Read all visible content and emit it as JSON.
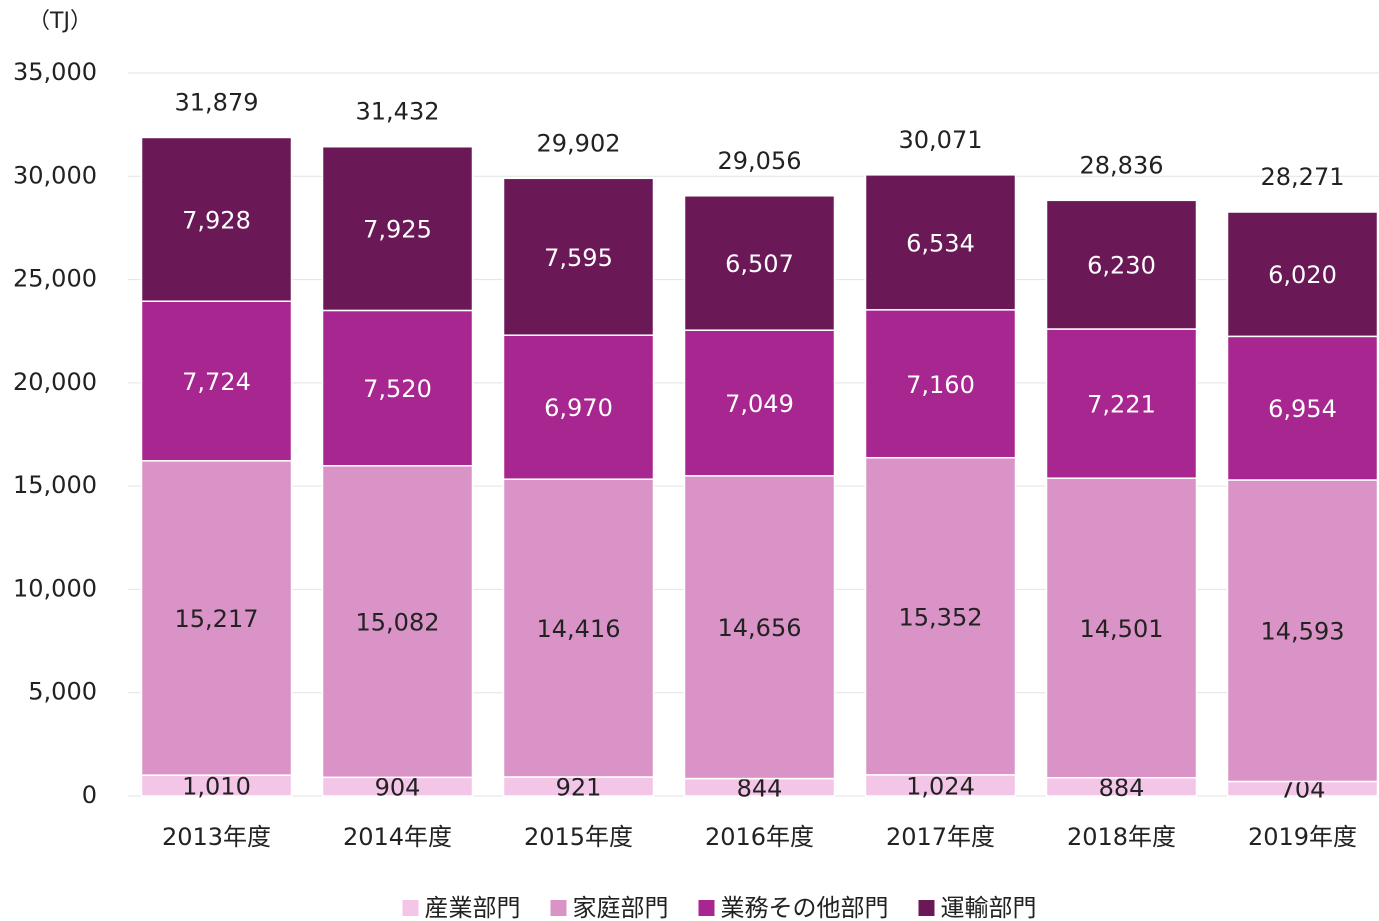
{
  "chart_data": {
    "type": "stacked_bar",
    "y_label": "（TJ）",
    "categories": [
      "2013年度",
      "2014年度",
      "2015年度",
      "2016年度",
      "2017年度",
      "2018年度",
      "2019年度"
    ],
    "series": [
      {
        "name": "産業部門",
        "color": "#f3c6e8",
        "values": [
          1010,
          904,
          921,
          844,
          1024,
          884,
          704
        ],
        "value_labels": [
          "1,010",
          "904",
          "921",
          "844",
          "1,024",
          "884",
          "704"
        ]
      },
      {
        "name": "家庭部門",
        "color": "#da93c6",
        "values": [
          15217,
          15082,
          14416,
          14656,
          15352,
          14501,
          14593
        ],
        "value_labels": [
          "15,217",
          "15,082",
          "14,416",
          "14,656",
          "15,352",
          "14,501",
          "14,593"
        ]
      },
      {
        "name": "業務その他部門",
        "color": "#a8268f",
        "values": [
          7724,
          7520,
          6970,
          7049,
          7160,
          7221,
          6954
        ],
        "value_labels": [
          "7,724",
          "7,520",
          "6,970",
          "7,049",
          "7,160",
          "7,221",
          "6,954"
        ]
      },
      {
        "name": "運輸部門",
        "color": "#6b1857",
        "values": [
          7928,
          7925,
          7595,
          6507,
          6534,
          6230,
          6020
        ],
        "value_labels": [
          "7,928",
          "7,925",
          "7,595",
          "6,507",
          "6,534",
          "6,230",
          "6,020"
        ]
      }
    ],
    "totals": [
      31879,
      31432,
      29902,
      29056,
      30071,
      28836,
      28271
    ],
    "total_labels": [
      "31,879",
      "31,432",
      "29,902",
      "29,056",
      "30,071",
      "28,836",
      "28,271"
    ],
    "ylim": [
      0,
      35000
    ],
    "yticks": [
      0,
      {
        "value": 5000,
        "label": "5,000"
      },
      {
        "value": 10000,
        "label": "10,000"
      },
      {
        "value": 15000,
        "label": "15,000"
      },
      {
        "value": 20000,
        "label": "20,000"
      },
      {
        "value": 25000,
        "label": "25,000"
      },
      {
        "value": 30000,
        "label": "30,000"
      },
      {
        "value": 35000,
        "label": "35,000"
      }
    ],
    "grid": true,
    "legend": "bottom"
  }
}
